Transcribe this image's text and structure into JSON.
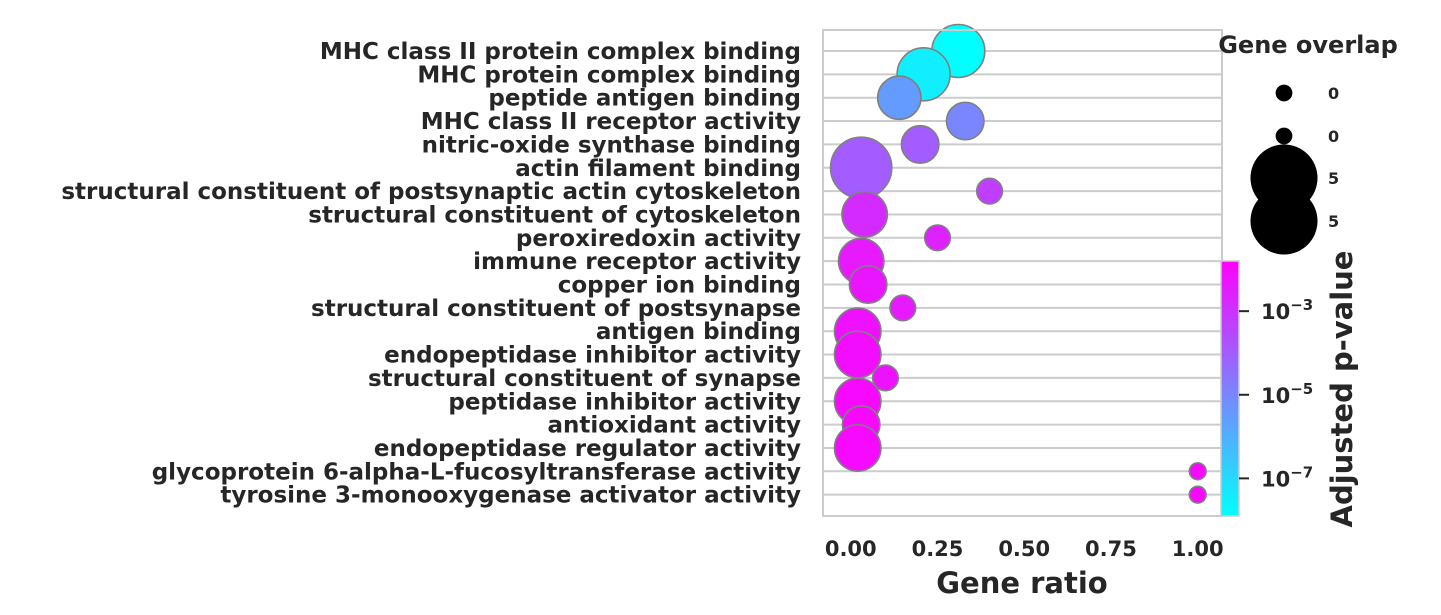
{
  "chart_data": {
    "type": "scatter",
    "xlabel": "Gene ratio",
    "xlim": [
      -0.08,
      1.07
    ],
    "xticks": [
      "0.00",
      "0.25",
      "0.50",
      "0.75",
      "1.00"
    ],
    "xtick_values": [
      0.0,
      0.25,
      0.5,
      0.75,
      1.0
    ],
    "grid": "horizontal",
    "colormap": [
      "#00ffff",
      "#ff00ff"
    ],
    "points": [
      {
        "term": "MHC class II protein complex binding",
        "x": 0.31,
        "overlap": 3.0,
        "neg_log10_p": 8.1
      },
      {
        "term": "MHC protein complex binding",
        "x": 0.21,
        "overlap": 3.0,
        "neg_log10_p": 7.5
      },
      {
        "term": "peptide antigen binding",
        "x": 0.14,
        "overlap": 2.0,
        "neg_log10_p": 5.5
      },
      {
        "term": "MHC class II receptor activity",
        "x": 0.33,
        "overlap": 1.5,
        "neg_log10_p": 5.0
      },
      {
        "term": "nitric-oxide synthase binding",
        "x": 0.2,
        "overlap": 1.5,
        "neg_log10_p": 4.0
      },
      {
        "term": "actin filament binding",
        "x": 0.03,
        "overlap": 4.0,
        "neg_log10_p": 4.0
      },
      {
        "term": "structural constituent of postsynaptic actin cytoskeleton",
        "x": 0.4,
        "overlap": 0.7,
        "neg_log10_p": 3.3
      },
      {
        "term": "structural constituent of cytoskeleton",
        "x": 0.04,
        "overlap": 2.2,
        "neg_log10_p": 2.8
      },
      {
        "term": "peroxiredoxin activity",
        "x": 0.25,
        "overlap": 0.7,
        "neg_log10_p": 2.6
      },
      {
        "term": "immune receptor activity",
        "x": 0.03,
        "overlap": 2.2,
        "neg_log10_p": 2.4
      },
      {
        "term": "copper ion binding",
        "x": 0.05,
        "overlap": 1.5,
        "neg_log10_p": 2.3
      },
      {
        "term": "structural constituent of postsynapse",
        "x": 0.15,
        "overlap": 0.7,
        "neg_log10_p": 2.4
      },
      {
        "term": "antigen binding",
        "x": 0.02,
        "overlap": 2.3,
        "neg_log10_p": 2.2
      },
      {
        "term": "endopeptidase inhibitor activity",
        "x": 0.02,
        "overlap": 2.3,
        "neg_log10_p": 2.1
      },
      {
        "term": "structural constituent of synapse",
        "x": 0.1,
        "overlap": 0.7,
        "neg_log10_p": 2.2
      },
      {
        "term": "peptidase inhibitor activity",
        "x": 0.02,
        "overlap": 2.3,
        "neg_log10_p": 2.0
      },
      {
        "term": "antioxidant activity",
        "x": 0.03,
        "overlap": 1.5,
        "neg_log10_p": 2.0
      },
      {
        "term": "endopeptidase regulator activity",
        "x": 0.02,
        "overlap": 2.3,
        "neg_log10_p": 2.0
      },
      {
        "term": "glycoprotein 6-alpha-L-fucosyltransferase activity",
        "x": 1.0,
        "overlap": 0.3,
        "neg_log10_p": 2.0
      },
      {
        "term": "tyrosine 3-monooxygenase activator activity",
        "x": 1.0,
        "overlap": 0.3,
        "neg_log10_p": 2.0
      }
    ],
    "size_legend": {
      "title": "Gene overlap",
      "entries": [
        {
          "label": "0",
          "overlap": 0.3
        },
        {
          "label": "0",
          "overlap": 0.3
        },
        {
          "label": "5",
          "overlap": 4.8
        },
        {
          "label": "5",
          "overlap": 4.8
        }
      ]
    },
    "colorbar": {
      "label": "Adjusted p-value",
      "scale": "log",
      "range_neg_log10": [
        1.8,
        7.9
      ],
      "ticks": [
        {
          "base": "10",
          "exp": "−3",
          "neg_log10": 3
        },
        {
          "base": "10",
          "exp": "−5",
          "neg_log10": 5
        },
        {
          "base": "10",
          "exp": "−7",
          "neg_log10": 7
        }
      ]
    }
  }
}
